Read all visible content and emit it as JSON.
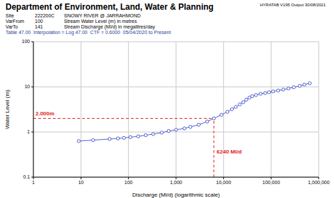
{
  "chart_data": {
    "type": "line",
    "title": "Department of Environment, Land, Water & Planning",
    "header": {
      "program": "HYRATAB V195",
      "output": "Output 30/08/2021",
      "rows": [
        [
          "Site",
          "222200C",
          "SNOWY RIVER @ JARRAHMOND"
        ],
        [
          "VarFrom",
          "100",
          "Stream Water Level (m) in metres"
        ],
        [
          "VarTo",
          "141",
          "Stream Discharge (Ml/d) in megalitres/day"
        ]
      ],
      "table": "Table 47.00  Interpolation = Log 47.00  CTF = 0.6000  05/04/2020 to Present"
    },
    "x_label": "Discharge (Ml/d) (logarithmic scale)",
    "y_label": "Water Level (m)",
    "x": [
      9,
      18,
      40,
      60,
      80,
      110,
      160,
      230,
      330,
      500,
      700,
      1000,
      1500,
      2000,
      3000,
      4500,
      6240,
      9000,
      12000,
      15000,
      18000,
      22000,
      26000,
      30000,
      35000,
      40000,
      48000,
      60000,
      75000,
      90000,
      110000,
      140000,
      180000,
      230000,
      300000,
      400000,
      500000,
      650000
    ],
    "series": [
      {
        "color": "#5060d0",
        "marker": "circle",
        "values": [
          0.63,
          0.66,
          0.7,
          0.72,
          0.74,
          0.77,
          0.8,
          0.85,
          0.9,
          0.97,
          1.05,
          1.12,
          1.2,
          1.3,
          1.45,
          1.7,
          2.0,
          2.4,
          2.8,
          3.2,
          3.6,
          4.1,
          4.6,
          5.2,
          5.8,
          6.2,
          6.6,
          7.0,
          7.3,
          7.6,
          7.9,
          8.3,
          8.7,
          9.2,
          9.8,
          10.5,
          11.2,
          12.0
        ]
      }
    ],
    "xlim": [
      1,
      1000000
    ],
    "ylim": [
      0.1,
      100
    ],
    "xticks": [
      1,
      10,
      100,
      {
        "value": 1000,
        "label": "1,000"
      },
      {
        "value": 10000,
        "label": "10,000"
      },
      {
        "value": 100000,
        "label": "100,000"
      },
      {
        "value": 1000000,
        "label": "1,000,000"
      }
    ],
    "yticks": [
      0.1,
      1,
      10,
      100
    ],
    "log": true,
    "grid": true,
    "annotations": [
      {
        "x": 6240,
        "y": 2.0,
        "x_text": "6240 Ml/d",
        "y_text": "2.000m",
        "color": "#e02020",
        "line_style": "dashed"
      }
    ]
  }
}
